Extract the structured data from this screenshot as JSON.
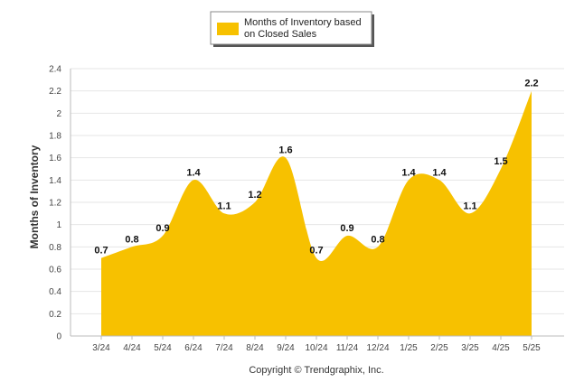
{
  "chart_data": {
    "type": "area",
    "categories": [
      "3/24",
      "4/24",
      "5/24",
      "6/24",
      "7/24",
      "8/24",
      "9/24",
      "10/24",
      "11/24",
      "12/24",
      "1/25",
      "2/25",
      "3/25",
      "4/25",
      "5/25"
    ],
    "series": [
      {
        "name": "Months of Inventory based on Closed Sales",
        "values": [
          0.7,
          0.8,
          0.9,
          1.4,
          1.1,
          1.2,
          1.6,
          0.7,
          0.9,
          0.8,
          1.4,
          1.4,
          1.1,
          1.5,
          2.2
        ]
      }
    ],
    "data_labels": [
      "0.7",
      "0.8",
      "0.9",
      "1.4",
      "1.1",
      "1.2",
      "1.6",
      "0.7",
      "0.9",
      "0.8",
      "1.4",
      "1.4",
      "1.1",
      "1.5",
      "2.2"
    ],
    "ylabel": "Months of Inventory",
    "xlabel": "",
    "ylim": [
      0,
      2.4
    ],
    "yticks": [
      "0",
      "0.2",
      "0.4",
      "0.6",
      "0.8",
      "1",
      "1.2",
      "1.4",
      "1.6",
      "1.8",
      "2",
      "2.2",
      "2.4"
    ],
    "grid": true,
    "legend": {
      "position": "top-center",
      "line1": "Months of Inventory based",
      "line2": "on Closed Sales"
    },
    "credit": "Copyright © Trendgraphix, Inc.",
    "colors": {
      "fill": "#F7C100",
      "grid": "#e6e6e6",
      "axis": "#bbbbbb"
    }
  }
}
